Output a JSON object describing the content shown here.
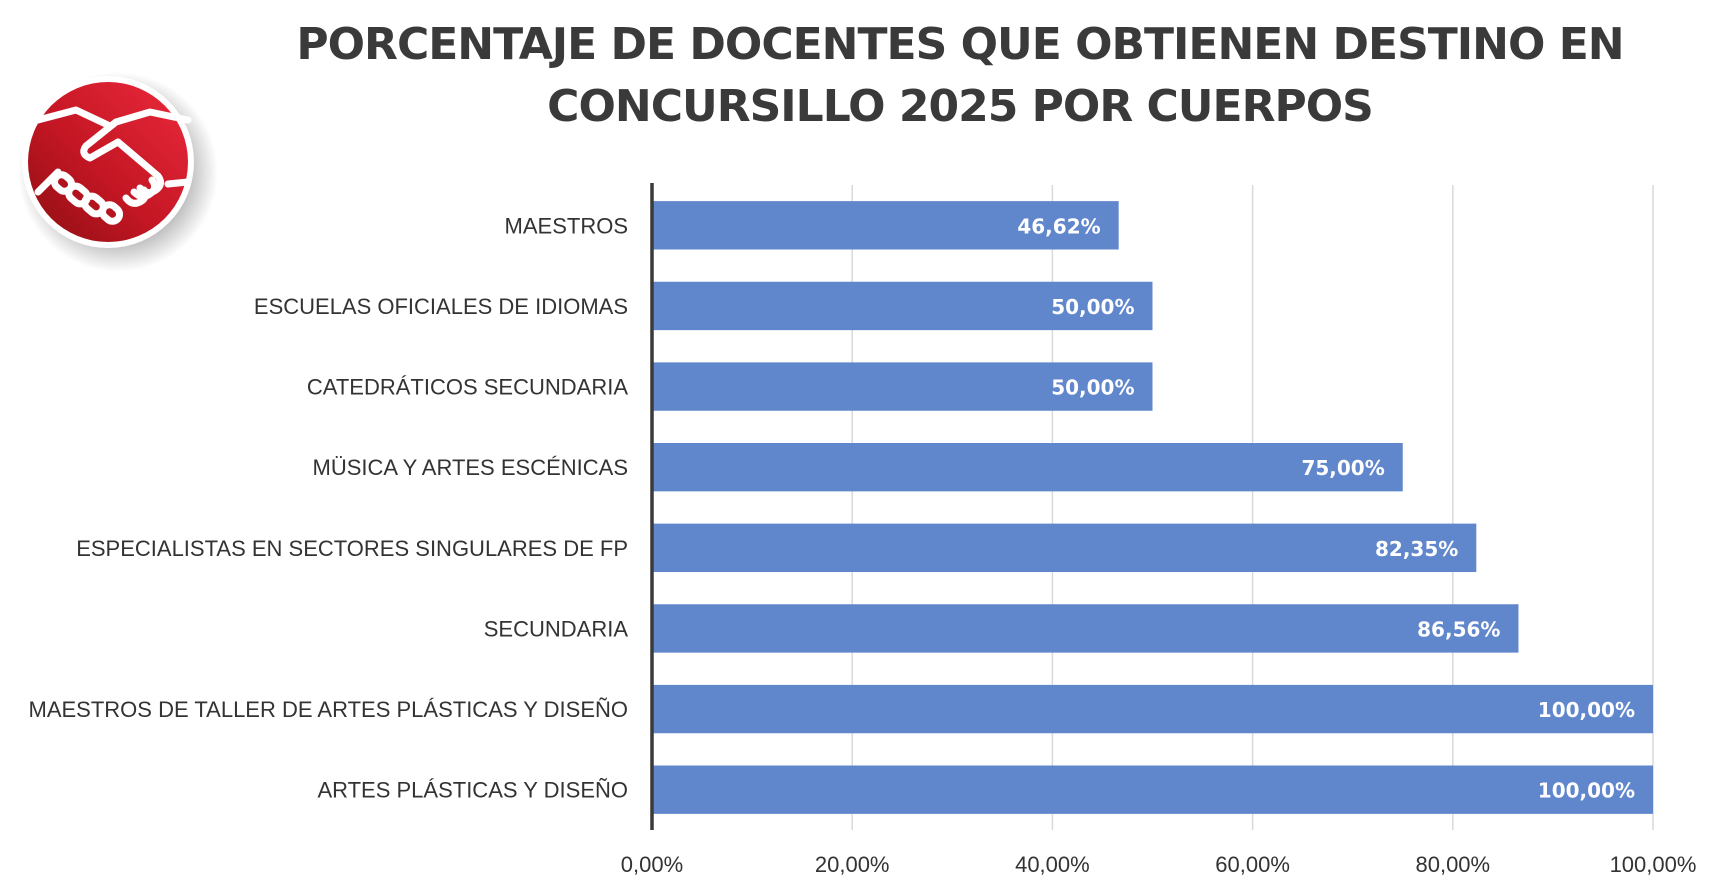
{
  "chart_data": {
    "type": "bar",
    "orientation": "horizontal",
    "title_lines": [
      "PORCENTAJE DE DOCENTES QUE OBTIENEN DESTINO EN",
      "CONCURSILLO 2025 POR CUERPOS"
    ],
    "categories": [
      "MAESTROS",
      "ESCUELAS OFICIALES DE IDIOMAS",
      "CATEDRÁTICOS SECUNDARIA",
      "MÜSICA Y ARTES ESCÉNICAS",
      "ESPECIALISTAS EN SECTORES SINGULARES DE FP",
      "SECUNDARIA",
      "MAESTROS DE TALLER DE ARTES PLÁSTICAS Y DISEÑO",
      "ARTES PLÁSTICAS Y DISEÑO"
    ],
    "values": [
      46.62,
      50.0,
      50.0,
      75.0,
      82.35,
      86.56,
      100.0,
      100.0
    ],
    "value_labels": [
      "46,62%",
      "50,00%",
      "50,00%",
      "75,00%",
      "82,35%",
      "86,56%",
      "100,00%",
      "100,00%"
    ],
    "xlim": [
      0,
      100
    ],
    "x_ticks": [
      0,
      20,
      40,
      60,
      80,
      100
    ],
    "x_tick_labels": [
      "0,00%",
      "20,00%",
      "40,00%",
      "60,00%",
      "80,00%",
      "100,00%"
    ],
    "grid": "vertical",
    "legend": "none",
    "colors": {
      "bar": "#6086cc",
      "grid": "#d9d9d9",
      "axis": "#3a3a3a",
      "value_text": "#ffffff"
    }
  },
  "logo": {
    "icon": "handshake-icon",
    "color_light": "#e8253a",
    "color_dark": "#8e0f12"
  }
}
